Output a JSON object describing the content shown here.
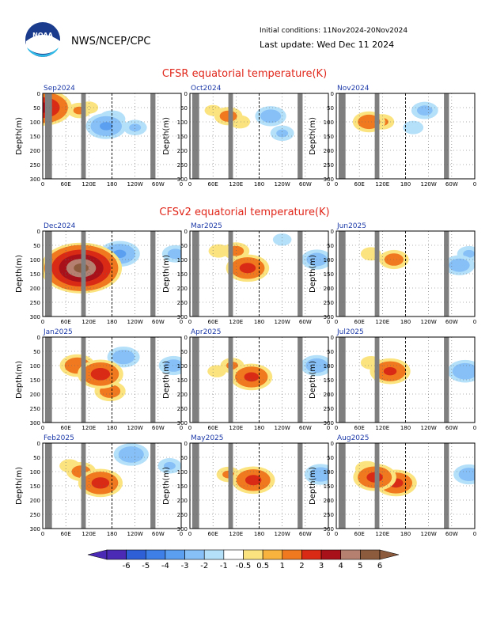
{
  "header": {
    "org": "NWS/NCEP/CPC",
    "logo_text": "NOAA",
    "init_conditions": "Initial conditions: 11Nov2024-20Nov2024",
    "last_update": "Last update: Wed Dec 11 2024"
  },
  "sections": [
    {
      "title": "CFSR equatorial temperature(K)"
    },
    {
      "title": "CFSv2 equatorial temperature(K)"
    }
  ],
  "axes": {
    "ylabel": "Depth(m)",
    "y_ticks": [
      "0",
      "50",
      "100",
      "150",
      "200",
      "250",
      "300"
    ],
    "x_ticks": [
      "0",
      "60E",
      "120E",
      "180",
      "120W",
      "60W",
      "0"
    ]
  },
  "colorbar": {
    "labels": [
      "-6",
      "-5",
      "-4",
      "-3",
      "-2",
      "-1",
      "-0.5",
      "0.5",
      "1",
      "2",
      "3",
      "4",
      "5",
      "6"
    ],
    "colors": [
      "#4b2bb5",
      "#2f5fd6",
      "#3d7fe6",
      "#5b9ff0",
      "#87c0f7",
      "#b5e0fa",
      "#ffffff",
      "#fbe480",
      "#f8b23e",
      "#f0781f",
      "#d92a16",
      "#a8101a",
      "#b58070",
      "#8c5a3c"
    ]
  },
  "chart_data": [
    {
      "type": "heatmap",
      "title": "Sep2024",
      "xlabel": "",
      "ylabel": "Depth(m)",
      "xlim": [
        0,
        360
      ],
      "ylim": [
        300,
        0
      ],
      "anomalies": [
        {
          "lon": 95,
          "depth": 60,
          "value": 1.0
        },
        {
          "lon": 120,
          "depth": 50,
          "value": 0.7
        },
        {
          "lon": 2,
          "depth": 50,
          "value": 3.5
        },
        {
          "lon": 165,
          "depth": 115,
          "value": -2.2
        },
        {
          "lon": 180,
          "depth": 90,
          "value": -1.2
        },
        {
          "lon": 240,
          "depth": 120,
          "value": -1.0
        }
      ]
    },
    {
      "type": "heatmap",
      "title": "Oct2024",
      "xlabel": "",
      "ylabel": "Depth(m)",
      "xlim": [
        0,
        360
      ],
      "ylim": [
        300,
        0
      ],
      "anomalies": [
        {
          "lon": 100,
          "depth": 80,
          "value": 1.3
        },
        {
          "lon": 130,
          "depth": 100,
          "value": 0.8
        },
        {
          "lon": 210,
          "depth": 80,
          "value": -1.5
        },
        {
          "lon": 240,
          "depth": 140,
          "value": -1.0
        },
        {
          "lon": 60,
          "depth": 60,
          "value": 0.6
        }
      ]
    },
    {
      "type": "heatmap",
      "title": "Nov2024",
      "xlabel": "",
      "ylabel": "Depth(m)",
      "xlim": [
        0,
        360
      ],
      "ylim": [
        300,
        0
      ],
      "anomalies": [
        {
          "lon": 85,
          "depth": 100,
          "value": 1.6
        },
        {
          "lon": 120,
          "depth": 100,
          "value": 1.0
        },
        {
          "lon": 230,
          "depth": 60,
          "value": -1.2
        },
        {
          "lon": 200,
          "depth": 120,
          "value": -0.8
        }
      ]
    },
    {
      "type": "heatmap",
      "title": "Dec2024",
      "xlabel": "",
      "ylabel": "Depth(m)",
      "xlim": [
        0,
        360
      ],
      "ylim": [
        300,
        0
      ],
      "anomalies": [
        {
          "lon": 100,
          "depth": 130,
          "value": 5.5
        },
        {
          "lon": 130,
          "depth": 100,
          "value": 2.0
        },
        {
          "lon": 200,
          "depth": 80,
          "value": -2.2
        },
        {
          "lon": 170,
          "depth": 120,
          "value": -1.3
        },
        {
          "lon": 345,
          "depth": 80,
          "value": -1.2
        }
      ]
    },
    {
      "type": "heatmap",
      "title": "Mar2025",
      "xlabel": "",
      "ylabel": "Depth(m)",
      "xlim": [
        0,
        360
      ],
      "ylim": [
        300,
        0
      ],
      "anomalies": [
        {
          "lon": 150,
          "depth": 130,
          "value": 2.4
        },
        {
          "lon": 120,
          "depth": 70,
          "value": 1.2
        },
        {
          "lon": 75,
          "depth": 70,
          "value": 0.8
        },
        {
          "lon": 330,
          "depth": 100,
          "value": -1.5
        },
        {
          "lon": 240,
          "depth": 30,
          "value": -0.7
        }
      ]
    },
    {
      "type": "heatmap",
      "title": "Jun2025",
      "xlabel": "",
      "ylabel": "Depth(m)",
      "xlim": [
        0,
        360
      ],
      "ylim": [
        300,
        0
      ],
      "anomalies": [
        {
          "lon": 150,
          "depth": 100,
          "value": 1.4
        },
        {
          "lon": 90,
          "depth": 80,
          "value": 0.8
        },
        {
          "lon": 320,
          "depth": 120,
          "value": -1.5
        },
        {
          "lon": 345,
          "depth": 80,
          "value": -1.0
        }
      ]
    },
    {
      "type": "heatmap",
      "title": "Jan2025",
      "xlabel": "",
      "ylabel": "Depth(m)",
      "xlim": [
        0,
        360
      ],
      "ylim": [
        300,
        0
      ],
      "anomalies": [
        {
          "lon": 150,
          "depth": 130,
          "value": 2.6
        },
        {
          "lon": 90,
          "depth": 100,
          "value": 1.8
        },
        {
          "lon": 175,
          "depth": 190,
          "value": 1.5
        },
        {
          "lon": 210,
          "depth": 70,
          "value": -1.6
        },
        {
          "lon": 340,
          "depth": 100,
          "value": -1.4
        }
      ]
    },
    {
      "type": "heatmap",
      "title": "Apr2025",
      "xlabel": "",
      "ylabel": "Depth(m)",
      "xlim": [
        0,
        360
      ],
      "ylim": [
        300,
        0
      ],
      "anomalies": [
        {
          "lon": 160,
          "depth": 140,
          "value": 2.3
        },
        {
          "lon": 110,
          "depth": 100,
          "value": 1.0
        },
        {
          "lon": 70,
          "depth": 120,
          "value": 0.7
        },
        {
          "lon": 330,
          "depth": 100,
          "value": -1.6
        }
      ]
    },
    {
      "type": "heatmap",
      "title": "Jul2025",
      "xlabel": "",
      "ylabel": "Depth(m)",
      "xlim": [
        0,
        360
      ],
      "ylim": [
        300,
        0
      ],
      "anomalies": [
        {
          "lon": 140,
          "depth": 120,
          "value": 2.2
        },
        {
          "lon": 90,
          "depth": 90,
          "value": 0.8
        },
        {
          "lon": 335,
          "depth": 120,
          "value": -1.8
        }
      ]
    },
    {
      "type": "heatmap",
      "title": "Feb2025",
      "xlabel": "",
      "ylabel": "Depth(m)",
      "xlim": [
        0,
        360
      ],
      "ylim": [
        300,
        0
      ],
      "anomalies": [
        {
          "lon": 150,
          "depth": 140,
          "value": 2.5
        },
        {
          "lon": 100,
          "depth": 100,
          "value": 1.4
        },
        {
          "lon": 70,
          "depth": 80,
          "value": 0.8
        },
        {
          "lon": 230,
          "depth": 40,
          "value": -1.8
        },
        {
          "lon": 330,
          "depth": 80,
          "value": -1.0
        }
      ]
    },
    {
      "type": "heatmap",
      "title": "May2025",
      "xlabel": "",
      "ylabel": "Depth(m)",
      "xlim": [
        0,
        360
      ],
      "ylim": [
        300,
        0
      ],
      "anomalies": [
        {
          "lon": 165,
          "depth": 130,
          "value": 2.4
        },
        {
          "lon": 100,
          "depth": 110,
          "value": 1.0
        },
        {
          "lon": 340,
          "depth": 110,
          "value": -1.6
        }
      ]
    },
    {
      "type": "heatmap",
      "title": "Aug2025",
      "xlabel": "",
      "ylabel": "Depth(m)",
      "xlim": [
        0,
        360
      ],
      "ylim": [
        300,
        0
      ],
      "anomalies": [
        {
          "lon": 100,
          "depth": 120,
          "value": 2.4
        },
        {
          "lon": 155,
          "depth": 140,
          "value": 2.3
        },
        {
          "lon": 80,
          "depth": 90,
          "value": 1.0
        },
        {
          "lon": 345,
          "depth": 110,
          "value": -1.5
        }
      ]
    }
  ]
}
